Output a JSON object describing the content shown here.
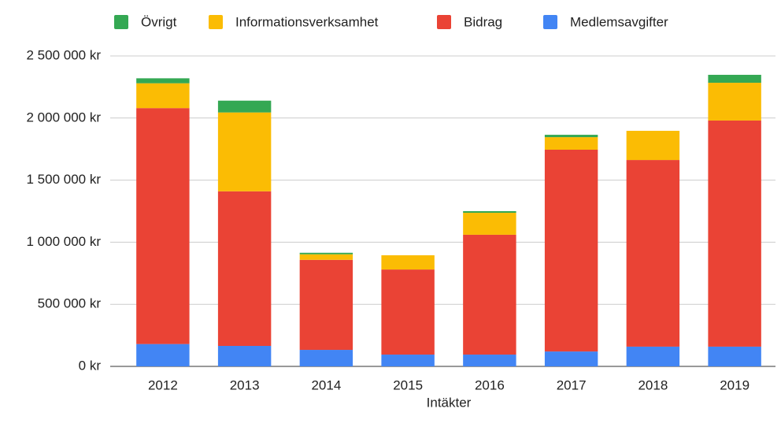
{
  "chart_data": {
    "type": "stacked_bar",
    "x_label": "Intäkter",
    "categories": [
      "2012",
      "2013",
      "2014",
      "2015",
      "2016",
      "2017",
      "2018",
      "2019"
    ],
    "series": [
      {
        "name": "Övrigt",
        "color": "#34a853",
        "values": [
          40000,
          95000,
          12000,
          0,
          13000,
          19000,
          0,
          64000
        ]
      },
      {
        "name": "Informationsverksamhet",
        "color": "#fbbc04",
        "values": [
          200000,
          635000,
          45000,
          115000,
          177000,
          101000,
          235000,
          304000
        ]
      },
      {
        "name": "Bidrag",
        "color": "#ea4335",
        "values": [
          1900000,
          1245000,
          725000,
          685000,
          965000,
          1625000,
          1503000,
          1821000
        ]
      },
      {
        "name": "Medlemsavgifter",
        "color": "#4285f4",
        "values": [
          180000,
          165000,
          133000,
          95000,
          95000,
          120000,
          159000,
          159000
        ]
      }
    ],
    "ylim": [
      0,
      2500000
    ],
    "yticks": [
      {
        "value": 0,
        "label": "0 kr"
      },
      {
        "value": 500000,
        "label": "500 000 kr"
      },
      {
        "value": 1000000,
        "label": "1 000 000 kr"
      },
      {
        "value": 1500000,
        "label": "1 500 000 kr"
      },
      {
        "value": 2000000,
        "label": "2 000 000 kr"
      },
      {
        "value": 2500000,
        "label": "2 500 000 kr"
      }
    ],
    "grid": true,
    "legend": "top"
  }
}
